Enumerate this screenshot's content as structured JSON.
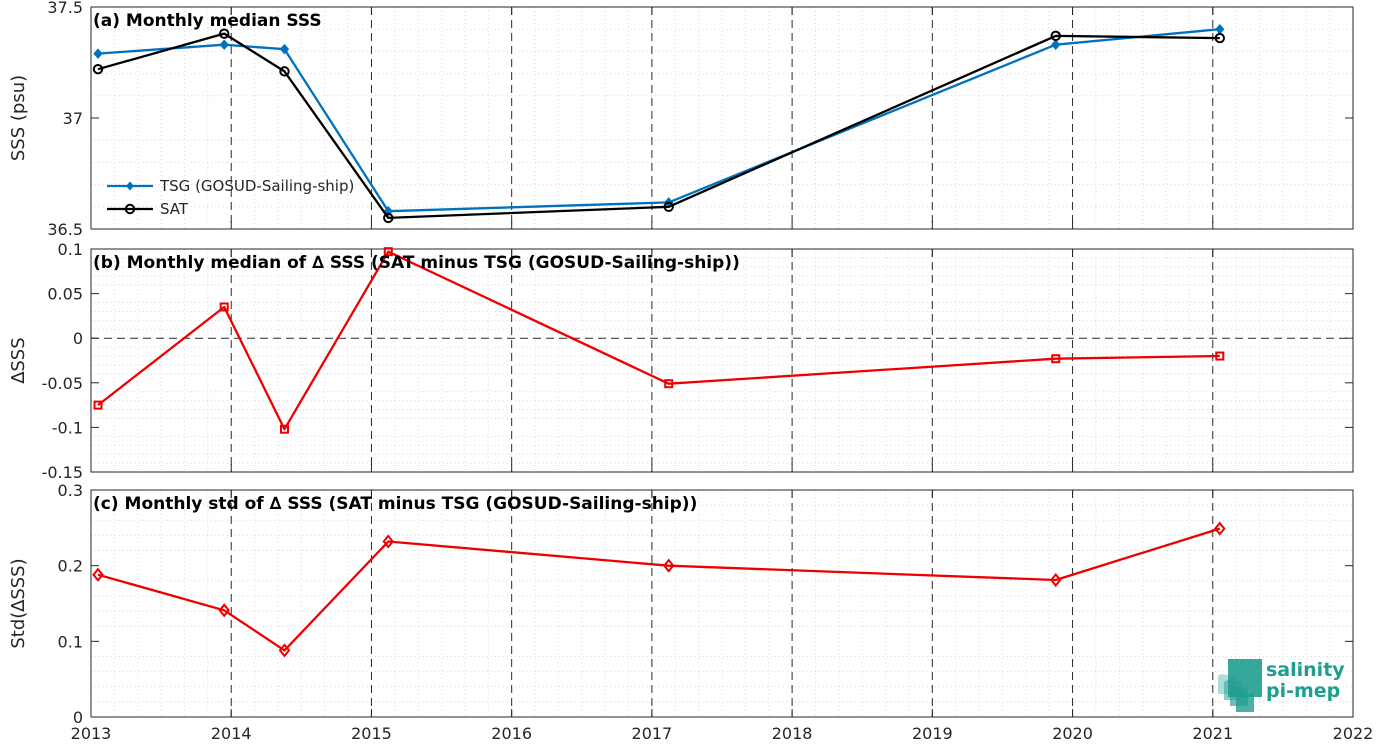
{
  "chart_data": [
    {
      "type": "line",
      "title": "(a) Monthly median SSS",
      "ylabel": "SSS (psu)",
      "xlabel": "",
      "xlim": [
        2013,
        2022
      ],
      "ylim": [
        36.5,
        37.5
      ],
      "yticks": [
        36.5,
        37,
        37.5
      ],
      "ytick_labels": [
        "36.5",
        "37",
        "37.5"
      ],
      "grid": true,
      "legend_position": "left",
      "series": [
        {
          "name": "TSG (GOSUD-Sailing-ship)",
          "color": "#0072bd",
          "marker": "diamond-filled",
          "x": [
            2013.05,
            2013.95,
            2014.38,
            2015.12,
            2017.12,
            2019.88,
            2021.05
          ],
          "y": [
            37.29,
            37.33,
            37.31,
            36.58,
            36.62,
            37.33,
            37.4
          ]
        },
        {
          "name": "SAT",
          "color": "#000000",
          "marker": "circle-open",
          "x": [
            2013.05,
            2013.95,
            2014.38,
            2015.12,
            2017.12,
            2019.88,
            2021.05
          ],
          "y": [
            37.22,
            37.38,
            37.21,
            36.55,
            36.6,
            37.37,
            37.36
          ]
        }
      ]
    },
    {
      "type": "line",
      "title": "(b) Monthly median of ∆ SSS (SAT minus TSG (GOSUD-Sailing-ship))",
      "ylabel": "∆SSS",
      "xlabel": "",
      "xlim": [
        2013,
        2022
      ],
      "ylim": [
        -0.15,
        0.1
      ],
      "yticks": [
        -0.15,
        -0.1,
        -0.05,
        0,
        0.05,
        0.1
      ],
      "ytick_labels": [
        "-0.15",
        "-0.1",
        "-0.05",
        "0",
        "0.05",
        "0.1"
      ],
      "grid": true,
      "zero_line": true,
      "series": [
        {
          "color": "#ee0000",
          "marker": "square-open",
          "x": [
            2013.05,
            2013.95,
            2014.38,
            2015.12,
            2017.12,
            2019.88,
            2021.05
          ],
          "y": [
            -0.075,
            0.035,
            -0.102,
            0.097,
            -0.051,
            -0.023,
            -0.02
          ]
        }
      ]
    },
    {
      "type": "line",
      "title": "(c) Monthly std of ∆ SSS (SAT minus TSG (GOSUD-Sailing-ship))",
      "ylabel": "Std(∆SSS)",
      "xlabel": "",
      "xlim": [
        2013,
        2022
      ],
      "ylim": [
        0,
        0.3
      ],
      "yticks": [
        0,
        0.1,
        0.2,
        0.3
      ],
      "ytick_labels": [
        "0",
        "0.1",
        "0.2",
        "0.3"
      ],
      "xticks": [
        2013,
        2014,
        2015,
        2016,
        2017,
        2018,
        2019,
        2020,
        2021,
        2022
      ],
      "xtick_labels": [
        "2013",
        "2014",
        "2015",
        "2016",
        "2017",
        "2018",
        "2019",
        "2020",
        "2021",
        "2022"
      ],
      "grid": true,
      "series": [
        {
          "color": "#ee0000",
          "marker": "diamond-open",
          "x": [
            2013.05,
            2013.95,
            2014.38,
            2015.12,
            2017.12,
            2019.88,
            2021.05
          ],
          "y": [
            0.188,
            0.141,
            0.088,
            0.232,
            0.2,
            0.181,
            0.249
          ]
        }
      ]
    }
  ],
  "logo": {
    "line1": "salinity",
    "line2": "pi-mep",
    "color": "#1f9e8f"
  }
}
